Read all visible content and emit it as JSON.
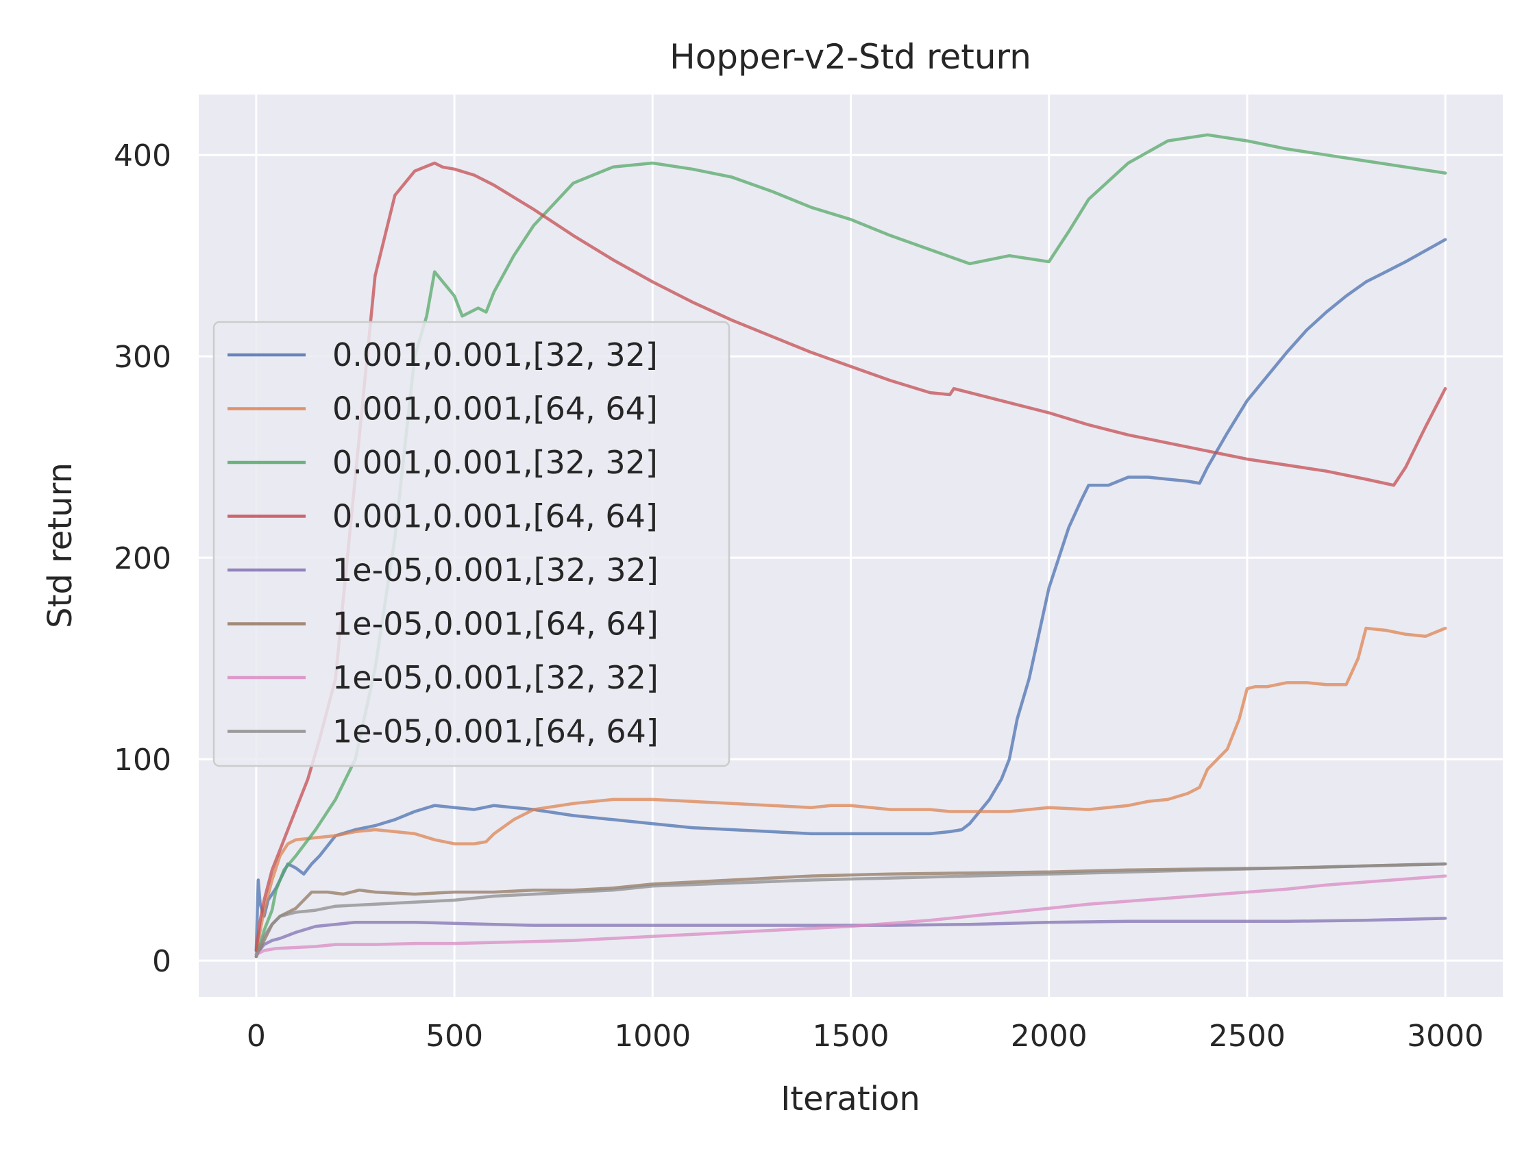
{
  "chart_data": {
    "type": "line",
    "title": "Hopper-v2-Std return",
    "xlabel": "Iteration",
    "ylabel": "Std return",
    "xlim": [
      -145,
      3145
    ],
    "ylim": [
      -18,
      430
    ],
    "xticks": [
      0,
      500,
      1000,
      1500,
      2000,
      2500,
      3000
    ],
    "yticks": [
      0,
      100,
      200,
      300,
      400
    ],
    "grid": true,
    "legend_position": "center-left",
    "series": [
      {
        "name": "0.001,0.001,[32, 32]",
        "color": "#4c72b0",
        "x": [
          0,
          5,
          10,
          20,
          30,
          50,
          60,
          80,
          100,
          120,
          140,
          160,
          180,
          200,
          250,
          300,
          350,
          400,
          450,
          500,
          550,
          600,
          650,
          700,
          800,
          900,
          1000,
          1100,
          1200,
          1300,
          1400,
          1500,
          1600,
          1700,
          1750,
          1780,
          1800,
          1850,
          1880,
          1900,
          1920,
          1950,
          2000,
          2050,
          2080,
          2100,
          2150,
          2200,
          2250,
          2300,
          2350,
          2380,
          2400,
          2450,
          2500,
          2550,
          2600,
          2650,
          2700,
          2750,
          2800,
          2850,
          2900,
          3000
        ],
        "y": [
          5,
          40,
          28,
          22,
          30,
          36,
          40,
          48,
          46,
          43,
          48,
          52,
          57,
          62,
          65,
          67,
          70,
          74,
          77,
          76,
          75,
          77,
          76,
          75,
          72,
          70,
          68,
          66,
          65,
          64,
          63,
          63,
          63,
          63,
          64,
          65,
          68,
          80,
          90,
          100,
          120,
          140,
          185,
          215,
          228,
          236,
          236,
          240,
          240,
          239,
          238,
          237,
          245,
          262,
          278,
          290,
          302,
          313,
          322,
          330,
          337,
          342,
          347,
          358
        ]
      },
      {
        "name": "0.001,0.001,[64, 64]",
        "color": "#dd8452",
        "x": [
          0,
          10,
          20,
          40,
          60,
          80,
          100,
          150,
          200,
          250,
          300,
          350,
          400,
          450,
          500,
          550,
          580,
          600,
          650,
          700,
          800,
          900,
          1000,
          1100,
          1200,
          1300,
          1400,
          1450,
          1500,
          1600,
          1700,
          1750,
          1800,
          1900,
          2000,
          2100,
          2200,
          2250,
          2300,
          2350,
          2380,
          2400,
          2450,
          2480,
          2500,
          2520,
          2550,
          2600,
          2650,
          2700,
          2750,
          2780,
          2800,
          2850,
          2900,
          2950,
          3000
        ],
        "y": [
          3,
          15,
          25,
          40,
          52,
          58,
          60,
          61,
          62,
          64,
          65,
          64,
          63,
          60,
          58,
          58,
          59,
          63,
          70,
          75,
          78,
          80,
          80,
          79,
          78,
          77,
          76,
          77,
          77,
          75,
          75,
          74,
          74,
          74,
          76,
          75,
          77,
          79,
          80,
          83,
          86,
          95,
          105,
          120,
          135,
          136,
          136,
          138,
          138,
          137,
          137,
          150,
          165,
          164,
          162,
          161,
          165
        ]
      },
      {
        "name": "0.001,0.001,[32, 32]",
        "color": "#55a868",
        "x": [
          0,
          10,
          20,
          40,
          50,
          70,
          100,
          150,
          200,
          250,
          300,
          350,
          400,
          430,
          450,
          500,
          520,
          540,
          560,
          580,
          600,
          650,
          700,
          800,
          900,
          1000,
          1100,
          1200,
          1300,
          1400,
          1500,
          1600,
          1700,
          1800,
          1900,
          2000,
          2050,
          2100,
          2200,
          2300,
          2400,
          2500,
          2600,
          2700,
          2800,
          2900,
          3000
        ],
        "y": [
          2,
          8,
          15,
          25,
          35,
          45,
          52,
          65,
          80,
          100,
          145,
          210,
          300,
          320,
          342,
          330,
          320,
          322,
          324,
          322,
          332,
          350,
          365,
          386,
          394,
          396,
          393,
          389,
          382,
          374,
          368,
          360,
          353,
          346,
          350,
          347,
          362,
          378,
          396,
          407,
          410,
          407,
          403,
          400,
          397,
          394,
          391
        ]
      },
      {
        "name": "0.001,0.001,[64, 64]",
        "color": "#c44e52",
        "x": [
          0,
          10,
          20,
          40,
          60,
          80,
          100,
          130,
          160,
          200,
          220,
          250,
          280,
          300,
          350,
          400,
          450,
          470,
          500,
          550,
          600,
          700,
          800,
          900,
          1000,
          1100,
          1200,
          1300,
          1400,
          1500,
          1600,
          1700,
          1750,
          1760,
          1800,
          1900,
          2000,
          2100,
          2200,
          2300,
          2400,
          2500,
          2600,
          2700,
          2800,
          2870,
          2900,
          2950,
          3000
        ],
        "y": [
          5,
          20,
          30,
          45,
          55,
          65,
          75,
          90,
          110,
          140,
          180,
          240,
          300,
          340,
          380,
          392,
          396,
          394,
          393,
          390,
          385,
          373,
          360,
          348,
          337,
          327,
          318,
          310,
          302,
          295,
          288,
          282,
          281,
          284,
          282,
          277,
          272,
          266,
          261,
          257,
          253,
          249,
          246,
          243,
          239,
          236,
          245,
          265,
          284
        ]
      },
      {
        "name": "1e-05,0.001,[32, 32]",
        "color": "#8172b3",
        "x": [
          0,
          20,
          40,
          60,
          100,
          150,
          200,
          250,
          300,
          350,
          400,
          500,
          600,
          700,
          800,
          900,
          1000,
          1200,
          1400,
          1600,
          1800,
          2000,
          2200,
          2400,
          2600,
          2800,
          3000
        ],
        "y": [
          3,
          8,
          10,
          11,
          14,
          17,
          18,
          19,
          19,
          19,
          19,
          18.5,
          18,
          17.5,
          17.5,
          17.5,
          17.5,
          17.5,
          17.5,
          17.5,
          18,
          19,
          19.5,
          19.5,
          19.5,
          20,
          21
        ]
      },
      {
        "name": "1e-05,0.001,[64, 64]",
        "color": "#937860",
        "x": [
          0,
          20,
          40,
          60,
          100,
          140,
          180,
          220,
          260,
          300,
          400,
          500,
          600,
          700,
          800,
          900,
          1000,
          1200,
          1400,
          1600,
          1800,
          2000,
          2200,
          2400,
          2600,
          2800,
          3000
        ],
        "y": [
          2,
          10,
          18,
          22,
          26,
          34,
          34,
          33,
          35,
          34,
          33,
          34,
          34,
          35,
          35,
          36,
          38,
          40,
          42,
          43,
          43.5,
          44,
          45,
          45.5,
          46,
          47,
          48
        ]
      },
      {
        "name": "1e-05,0.001,[32, 32]",
        "color": "#da8bc3",
        "x": [
          0,
          20,
          50,
          100,
          150,
          200,
          300,
          400,
          500,
          600,
          700,
          800,
          900,
          1000,
          1100,
          1200,
          1300,
          1400,
          1500,
          1600,
          1700,
          1800,
          1900,
          2000,
          2100,
          2200,
          2300,
          2400,
          2500,
          2600,
          2700,
          2800,
          2900,
          3000
        ],
        "y": [
          3,
          5,
          6,
          6.5,
          7,
          8,
          8,
          8.5,
          8.5,
          9,
          9.5,
          10,
          11,
          12,
          13,
          14,
          15,
          16,
          17,
          18.5,
          20,
          22,
          24,
          26,
          28,
          29.5,
          31,
          32.5,
          34,
          35.5,
          37.5,
          39,
          40.5,
          42
        ]
      },
      {
        "name": "1e-05,0.001,[64, 64]",
        "color": "#8c8c8c",
        "x": [
          0,
          20,
          40,
          60,
          100,
          150,
          200,
          300,
          400,
          500,
          600,
          700,
          800,
          900,
          1000,
          1200,
          1400,
          1600,
          1800,
          2000,
          2200,
          2400,
          2600,
          2800,
          3000
        ],
        "y": [
          2,
          12,
          18,
          22,
          24,
          25,
          27,
          28,
          29,
          30,
          32,
          33,
          34,
          35,
          37,
          38.5,
          40,
          41,
          42,
          43,
          44,
          45,
          46,
          47,
          48
        ]
      }
    ]
  }
}
